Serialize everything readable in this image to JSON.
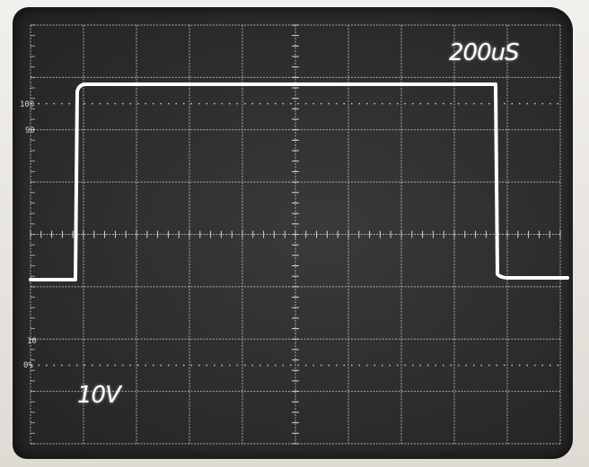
{
  "scope": {
    "timebase_label": "200uS",
    "voltage_label": "10V",
    "graticule_marks": {
      "top_pct": "100",
      "upper_pct": "90",
      "lower_pct": "10",
      "bottom_pct": "0%"
    }
  },
  "colors": {
    "trace": "#ffffff",
    "grid": "#d6d6d6",
    "screen": "#2e2e2e",
    "bezel": "#e9e6e0"
  }
}
